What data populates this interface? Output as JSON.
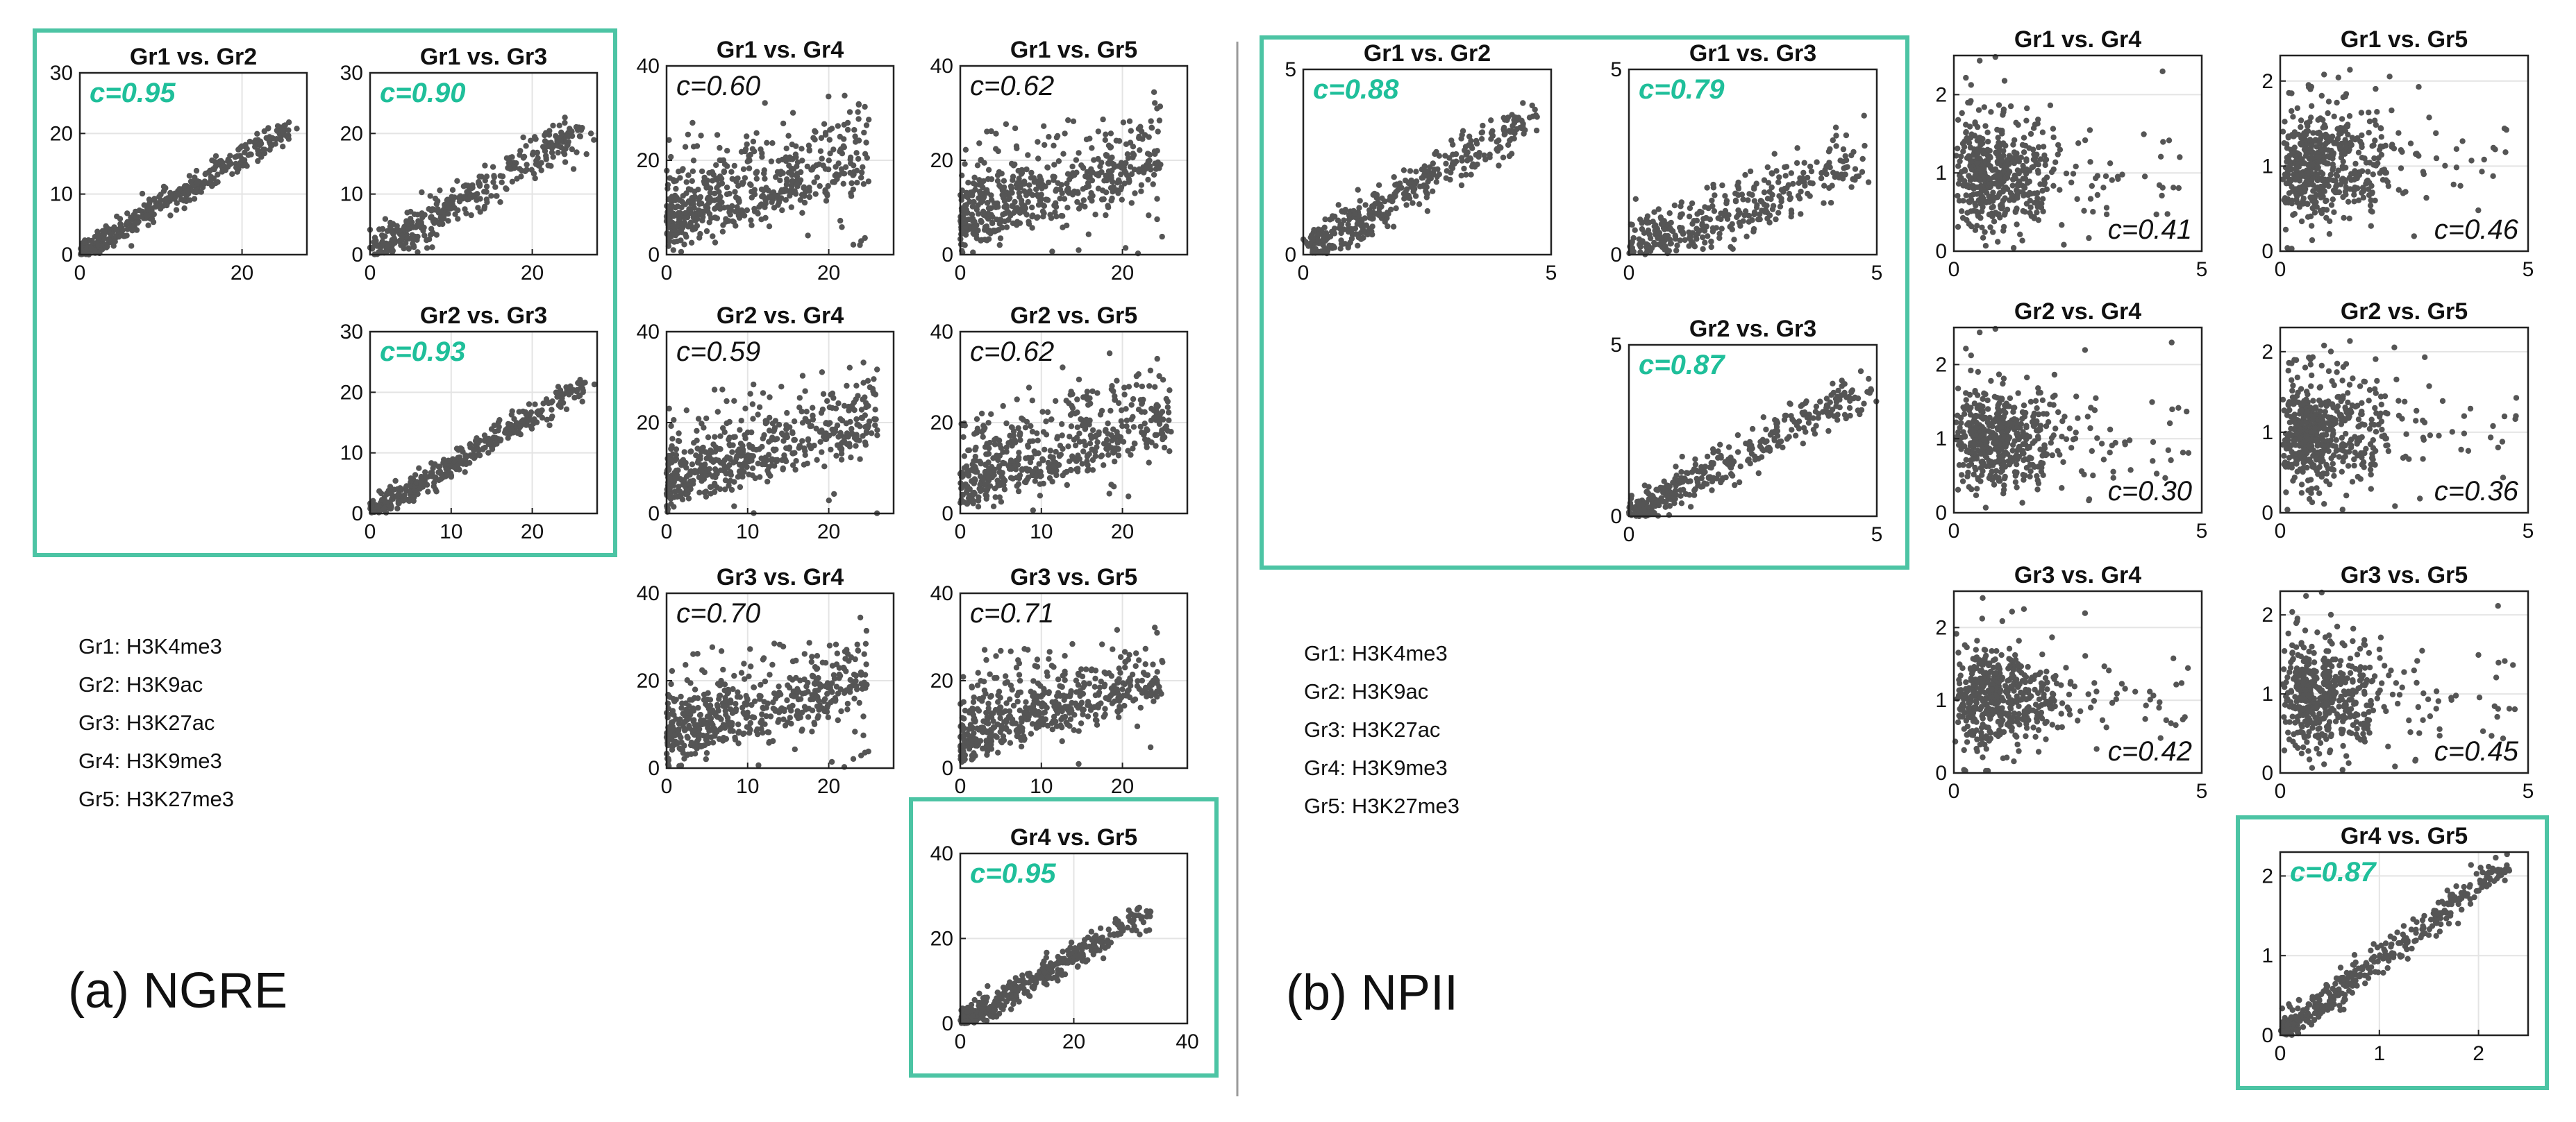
{
  "panels": {
    "a": {
      "label": "(a) NGRE"
    },
    "b": {
      "label": "(b) NPII"
    }
  },
  "legend": {
    "a": [
      "Gr1: H3K4me3",
      "Gr2: H3K9ac",
      "Gr3: H3K27ac",
      "Gr4: H3K9me3",
      "Gr5: H3K27me3"
    ],
    "b": [
      "Gr1: H3K4me3",
      "Gr2: H3K9ac",
      "Gr3: H3K27ac",
      "Gr4: H3K9me3",
      "Gr5: H3K27me3"
    ]
  },
  "colors": {
    "highlight": "#1fbf9a",
    "frame": "#4cc4a4",
    "point": "#555555",
    "axis": "#222222",
    "grid": "#e4e4e4"
  },
  "chart_data": [
    {
      "type": "scatter",
      "panel": "NGRE",
      "title": "Gr1 vs. Gr2",
      "annotation": "c=0.95",
      "highlight": true,
      "xlim": [
        0,
        28
      ],
      "ylim": [
        0,
        30
      ],
      "xticks": [
        0,
        20
      ],
      "yticks": [
        0,
        10,
        20,
        30
      ],
      "pattern": "diagonal-tight",
      "max": 26
    },
    {
      "type": "scatter",
      "panel": "NGRE",
      "title": "Gr1 vs. Gr3",
      "annotation": "c=0.90",
      "highlight": true,
      "xlim": [
        0,
        28
      ],
      "ylim": [
        0,
        30
      ],
      "xticks": [
        0,
        20
      ],
      "yticks": [
        0,
        10,
        20,
        30
      ],
      "pattern": "diagonal",
      "max": 26
    },
    {
      "type": "scatter",
      "panel": "NGRE",
      "title": "Gr1 vs. Gr4",
      "annotation": "c=0.60",
      "highlight": false,
      "xlim": [
        0,
        28
      ],
      "ylim": [
        0,
        40
      ],
      "xticks": [
        0,
        20
      ],
      "yticks": [
        0,
        20,
        40
      ],
      "pattern": "cloud-hi",
      "max": 25
    },
    {
      "type": "scatter",
      "panel": "NGRE",
      "title": "Gr1 vs. Gr5",
      "annotation": "c=0.62",
      "highlight": false,
      "xlim": [
        0,
        28
      ],
      "ylim": [
        0,
        40
      ],
      "xticks": [
        0,
        20
      ],
      "yticks": [
        0,
        20,
        40
      ],
      "pattern": "cloud-hi",
      "max": 25
    },
    {
      "type": "scatter",
      "panel": "NGRE",
      "title": "Gr2 vs. Gr3",
      "annotation": "c=0.93",
      "highlight": true,
      "xlim": [
        0,
        28
      ],
      "ylim": [
        0,
        30
      ],
      "xticks": [
        0,
        10,
        20
      ],
      "yticks": [
        0,
        10,
        20,
        30
      ],
      "pattern": "diagonal-tight",
      "max": 27
    },
    {
      "type": "scatter",
      "panel": "NGRE",
      "title": "Gr2 vs. Gr4",
      "annotation": "c=0.59",
      "highlight": false,
      "xlim": [
        0,
        28
      ],
      "ylim": [
        0,
        40
      ],
      "xticks": [
        0,
        10,
        20
      ],
      "yticks": [
        0,
        20,
        40
      ],
      "pattern": "cloud-hi",
      "max": 26
    },
    {
      "type": "scatter",
      "panel": "NGRE",
      "title": "Gr2 vs. Gr5",
      "annotation": "c=0.62",
      "highlight": false,
      "xlim": [
        0,
        28
      ],
      "ylim": [
        0,
        40
      ],
      "xticks": [
        0,
        10,
        20
      ],
      "yticks": [
        0,
        20,
        40
      ],
      "pattern": "cloud-hi",
      "max": 26
    },
    {
      "type": "scatter",
      "panel": "NGRE",
      "title": "Gr3 vs. Gr4",
      "annotation": "c=0.70",
      "highlight": false,
      "xlim": [
        0,
        28
      ],
      "ylim": [
        0,
        40
      ],
      "xticks": [
        0,
        10,
        20
      ],
      "yticks": [
        0,
        20,
        40
      ],
      "pattern": "cloud-hi",
      "max": 25
    },
    {
      "type": "scatter",
      "panel": "NGRE",
      "title": "Gr3 vs. Gr5",
      "annotation": "c=0.71",
      "highlight": false,
      "xlim": [
        0,
        28
      ],
      "ylim": [
        0,
        40
      ],
      "xticks": [
        0,
        10,
        20
      ],
      "yticks": [
        0,
        20,
        40
      ],
      "pattern": "cloud-hi",
      "max": 25
    },
    {
      "type": "scatter",
      "panel": "NGRE",
      "title": "Gr4 vs. Gr5",
      "annotation": "c=0.95",
      "highlight": true,
      "xlim": [
        0,
        40
      ],
      "ylim": [
        0,
        40
      ],
      "xticks": [
        0,
        20,
        40
      ],
      "yticks": [
        0,
        20,
        40
      ],
      "pattern": "diagonal-tight",
      "max": 33
    },
    {
      "type": "scatter",
      "panel": "NPII",
      "title": "Gr1 vs. Gr2",
      "annotation": "c=0.88",
      "highlight": true,
      "xlim": [
        0,
        5
      ],
      "ylim": [
        0,
        5
      ],
      "xticks": [
        0,
        5
      ],
      "yticks": [
        0,
        5
      ],
      "pattern": "diagonal",
      "max": 4.6
    },
    {
      "type": "scatter",
      "panel": "NPII",
      "title": "Gr1 vs. Gr3",
      "annotation": "c=0.79",
      "highlight": true,
      "xlim": [
        0,
        5
      ],
      "ylim": [
        0,
        5
      ],
      "xticks": [
        0,
        5
      ],
      "yticks": [
        0,
        5
      ],
      "pattern": "diagonal-loose",
      "max": 4.6
    },
    {
      "type": "scatter",
      "panel": "NPII",
      "title": "Gr1 vs. Gr4",
      "annotation": "c=0.41",
      "highlight": false,
      "xlim": [
        0,
        5
      ],
      "ylim": [
        0,
        2.5
      ],
      "xticks": [
        0,
        5
      ],
      "yticks": [
        0,
        1,
        2
      ],
      "pattern": "cloud-lo",
      "max": 4.6
    },
    {
      "type": "scatter",
      "panel": "NPII",
      "title": "Gr1 vs. Gr5",
      "annotation": "c=0.46",
      "highlight": false,
      "xlim": [
        0,
        5
      ],
      "ylim": [
        0,
        2.3
      ],
      "xticks": [
        0,
        5
      ],
      "yticks": [
        0,
        1,
        2
      ],
      "pattern": "cloud-lo",
      "max": 4.6
    },
    {
      "type": "scatter",
      "panel": "NPII",
      "title": "Gr2 vs. Gr3",
      "annotation": "c=0.87",
      "highlight": true,
      "xlim": [
        0,
        5
      ],
      "ylim": [
        0,
        5
      ],
      "xticks": [
        0,
        5
      ],
      "yticks": [
        0,
        5
      ],
      "pattern": "diagonal",
      "max": 4.8
    },
    {
      "type": "scatter",
      "panel": "NPII",
      "title": "Gr2 vs. Gr4",
      "annotation": "c=0.30",
      "highlight": false,
      "xlim": [
        0,
        5
      ],
      "ylim": [
        0,
        2.5
      ],
      "xticks": [
        0,
        5
      ],
      "yticks": [
        0,
        1,
        2
      ],
      "pattern": "cloud-lo",
      "max": 4.8
    },
    {
      "type": "scatter",
      "panel": "NPII",
      "title": "Gr2 vs. Gr5",
      "annotation": "c=0.36",
      "highlight": false,
      "xlim": [
        0,
        5
      ],
      "ylim": [
        0,
        2.3
      ],
      "xticks": [
        0,
        5
      ],
      "yticks": [
        0,
        1,
        2
      ],
      "pattern": "cloud-lo",
      "max": 4.8
    },
    {
      "type": "scatter",
      "panel": "NPII",
      "title": "Gr3 vs. Gr4",
      "annotation": "c=0.42",
      "highlight": false,
      "xlim": [
        0,
        5
      ],
      "ylim": [
        0,
        2.5
      ],
      "xticks": [
        0,
        5
      ],
      "yticks": [
        0,
        1,
        2
      ],
      "pattern": "cloud-lo",
      "max": 4.8
    },
    {
      "type": "scatter",
      "panel": "NPII",
      "title": "Gr3 vs. Gr5",
      "annotation": "c=0.45",
      "highlight": false,
      "xlim": [
        0,
        5
      ],
      "ylim": [
        0,
        2.3
      ],
      "xticks": [
        0,
        5
      ],
      "yticks": [
        0,
        1,
        2
      ],
      "pattern": "cloud-lo",
      "max": 4.8
    },
    {
      "type": "scatter",
      "panel": "NPII",
      "title": "Gr4 vs. Gr5",
      "annotation": "c=0.87",
      "highlight": true,
      "xlim": [
        0,
        2.5
      ],
      "ylim": [
        0,
        2.3
      ],
      "xticks": [
        0,
        1,
        2
      ],
      "yticks": [
        0,
        1,
        2
      ],
      "pattern": "diagonal-tight",
      "max": 2.3
    }
  ]
}
